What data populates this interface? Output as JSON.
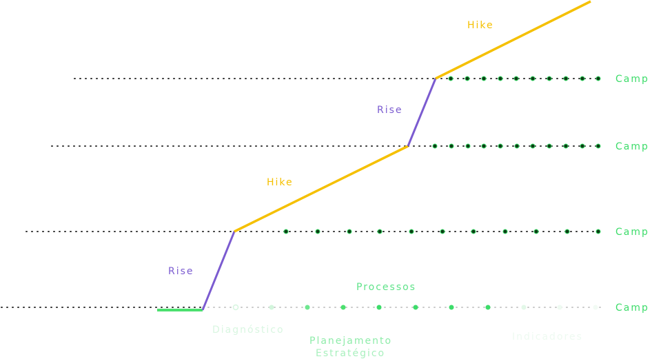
{
  "colors": {
    "hike": "#f5c000",
    "rise": "#7b5bd0",
    "camp": "#3ddc6a",
    "dot_dark": "#0b3d14",
    "dotted_line": "#333333",
    "faint_green": "#b8f0c8",
    "mid_green": "#7ee89a",
    "start": "#4be06e"
  },
  "labels": {
    "camp_1": "Camp",
    "camp_2": "Camp",
    "camp_3": "Camp",
    "camp_4": "Camp",
    "hike_top": "Hike",
    "hike_mid": "Hike",
    "rise_upper": "Rise",
    "rise_lower": "Rise",
    "processos": "Processos",
    "diagnostico": "Diagnóstico",
    "planejamento_1": "Planejamento",
    "planejamento_2": "Estratégico",
    "indicadores": "Indicadores"
  }
}
